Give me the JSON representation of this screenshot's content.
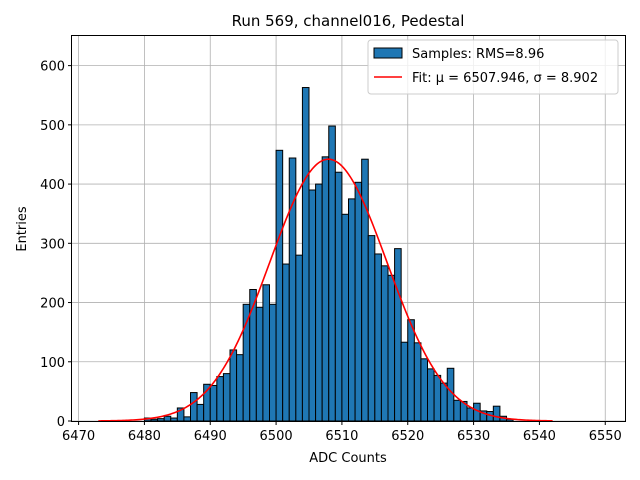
{
  "chart_data": {
    "type": "histogram",
    "title": "Run 569, channel016, Pedestal",
    "xlabel": "ADC Counts",
    "ylabel": "Entries",
    "xlim": [
      6469,
      6553
    ],
    "ylim": [
      0,
      650
    ],
    "xticks": [
      6470,
      6480,
      6490,
      6500,
      6510,
      6520,
      6530,
      6540,
      6550
    ],
    "yticks": [
      0,
      100,
      200,
      300,
      400,
      500,
      600
    ],
    "grid": true,
    "legend_position": "top-right",
    "bar_color": "#1f77b4",
    "bar_edge_color": "#000000",
    "fit_color": "#ff0000",
    "histogram": {
      "name": "Samples: RMS=8.96",
      "bin_width": 1,
      "bins_start": 6480,
      "bins_end": 6535,
      "counts": [
        5,
        3,
        4,
        8,
        5,
        22,
        7,
        48,
        28,
        62,
        60,
        75,
        80,
        120,
        112,
        197,
        222,
        192,
        230,
        197,
        457,
        265,
        444,
        280,
        563,
        390,
        400,
        446,
        498,
        420,
        349,
        375,
        403,
        442,
        313,
        282,
        262,
        246,
        291,
        133,
        171,
        132,
        105,
        88,
        77,
        64,
        89,
        35,
        33,
        22,
        30,
        17,
        16,
        25,
        8,
        3
      ]
    },
    "fit": {
      "name": "Fit: μ = 6507.946, σ = 8.902",
      "mu": 6507.946,
      "sigma": 8.902,
      "amplitude": 442,
      "x_range": [
        6473,
        6542
      ]
    }
  }
}
